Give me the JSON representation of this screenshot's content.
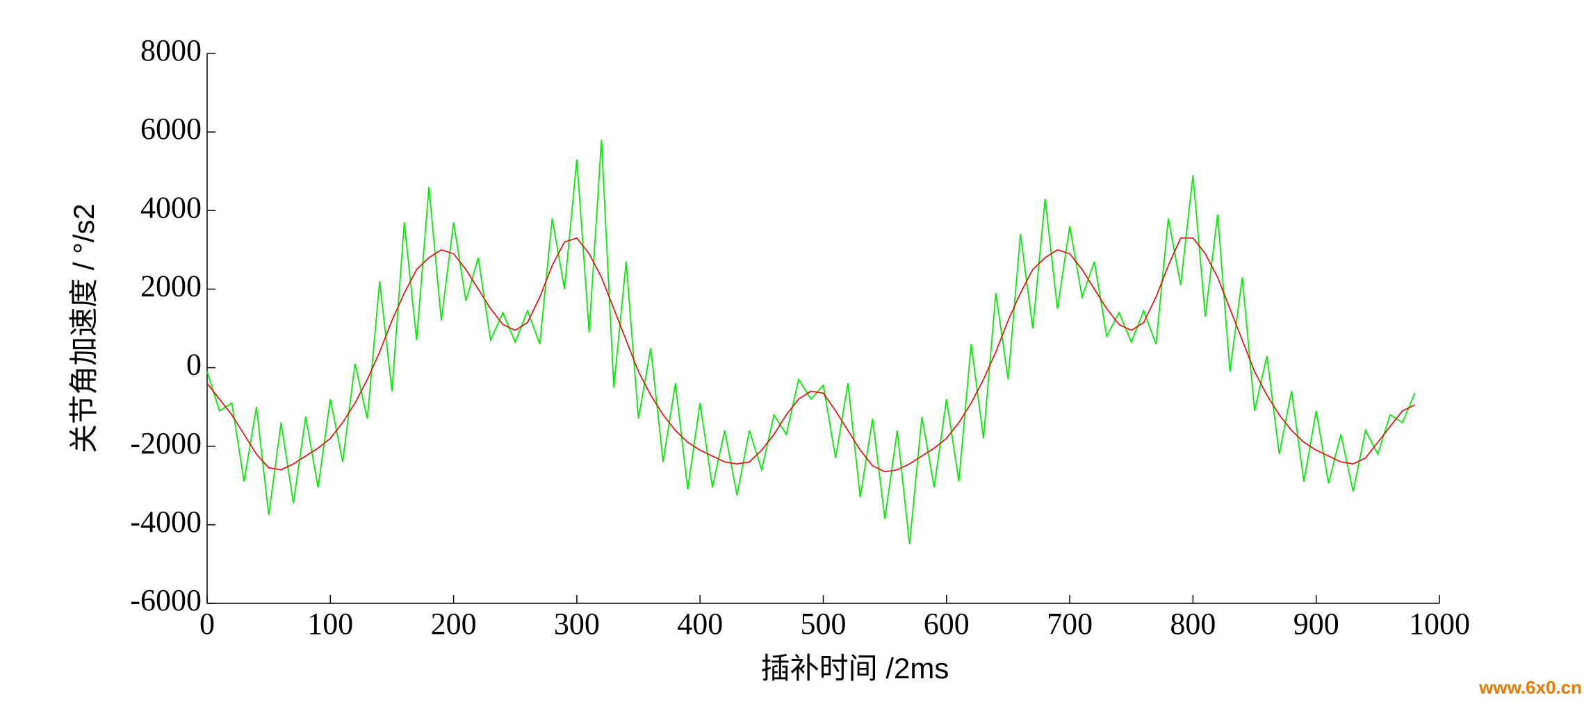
{
  "chart_data": {
    "type": "line",
    "ylabel": "关节角加速度  / °/s2",
    "xlabel": "插补时间  /2ms",
    "watermark": "www.6x0.cn",
    "xlim": [
      0,
      1000
    ],
    "xticks": [
      0,
      100,
      200,
      300,
      400,
      500,
      600,
      700,
      800,
      900,
      1000
    ],
    "ylim": [
      -6000,
      8000
    ],
    "yticks": [
      -6000,
      -4000,
      -2000,
      0,
      2000,
      4000,
      6000,
      8000
    ],
    "grid": false,
    "x": [
      0,
      10,
      20,
      30,
      40,
      50,
      60,
      70,
      80,
      90,
      100,
      110,
      120,
      130,
      140,
      150,
      160,
      170,
      180,
      190,
      200,
      210,
      220,
      230,
      240,
      250,
      260,
      270,
      280,
      290,
      300,
      310,
      320,
      330,
      340,
      350,
      360,
      370,
      380,
      390,
      400,
      410,
      420,
      430,
      440,
      450,
      460,
      470,
      480,
      490,
      500,
      510,
      520,
      530,
      540,
      550,
      560,
      570,
      580,
      590,
      600,
      610,
      620,
      630,
      640,
      650,
      660,
      670,
      680,
      690,
      700,
      710,
      720,
      730,
      740,
      750,
      760,
      770,
      780,
      790,
      800,
      810,
      820,
      830,
      840,
      850,
      860,
      870,
      880,
      890,
      900,
      910,
      920,
      930,
      940,
      950,
      960,
      970,
      980
    ],
    "series": [
      {
        "color": "#00ee00",
        "values": [
          -100,
          -1100,
          -900,
          -2900,
          -1000,
          -3750,
          -1400,
          -3450,
          -1250,
          -3050,
          -800,
          -2400,
          100,
          -1300,
          2200,
          -600,
          3700,
          700,
          4600,
          1200,
          3700,
          1700,
          2800,
          700,
          1400,
          650,
          1450,
          600,
          3800,
          2000,
          5300,
          900,
          5800,
          -500,
          2700,
          -1300,
          500,
          -2400,
          -400,
          -3100,
          -900,
          -3050,
          -1600,
          -3250,
          -1600,
          -2600,
          -1200,
          -1700,
          -300,
          -800,
          -450,
          -2300,
          -400,
          -3300,
          -1300,
          -3850,
          -1600,
          -4500,
          -1250,
          -3050,
          -800,
          -2900,
          600,
          -1800,
          1900,
          -300,
          3400,
          1000,
          4300,
          1500,
          3600,
          1800,
          2700,
          800,
          1400,
          650,
          1450,
          600,
          3800,
          2100,
          4900,
          1300,
          3900,
          -100,
          2300,
          -1100,
          300,
          -2200,
          -600,
          -2900,
          -1100,
          -2950,
          -1700,
          -3150,
          -1600,
          -2200,
          -1200,
          -1400,
          -650
        ]
      },
      {
        "color": "#ee0000",
        "values": [
          -400,
          -800,
          -1200,
          -1700,
          -2200,
          -2550,
          -2600,
          -2450,
          -2250,
          -2050,
          -1800,
          -1400,
          -900,
          -300,
          400,
          1200,
          1900,
          2500,
          2800,
          3000,
          2900,
          2500,
          2000,
          1500,
          1100,
          950,
          1150,
          1800,
          2600,
          3200,
          3300,
          2900,
          2300,
          1500,
          700,
          -100,
          -700,
          -1200,
          -1600,
          -1900,
          -2100,
          -2250,
          -2400,
          -2450,
          -2400,
          -2100,
          -1700,
          -1200,
          -800,
          -600,
          -650,
          -1100,
          -1600,
          -2100,
          -2500,
          -2650,
          -2600,
          -2450,
          -2250,
          -2050,
          -1800,
          -1400,
          -900,
          -300,
          400,
          1200,
          1900,
          2500,
          2800,
          3000,
          2900,
          2500,
          2000,
          1500,
          1100,
          950,
          1150,
          1800,
          2600,
          3300,
          3300,
          2900,
          2300,
          1500,
          700,
          -100,
          -700,
          -1200,
          -1600,
          -1900,
          -2100,
          -2250,
          -2400,
          -2450,
          -2300,
          -1900,
          -1500,
          -1100,
          -950
        ]
      }
    ]
  }
}
